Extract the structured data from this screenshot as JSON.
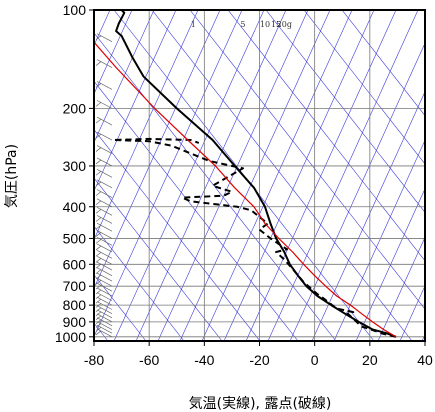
{
  "chart_data": {
    "type": "line",
    "title": "",
    "xlabel": "気温(実線), 露点(破線)",
    "ylabel": "気圧(hPa)",
    "xlim": [
      -80,
      40
    ],
    "ylim": [
      1030,
      100
    ],
    "y_scale": "log",
    "x_ticks": [
      -80,
      -60,
      -40,
      -20,
      0,
      20,
      40
    ],
    "y_ticks": [
      100,
      200,
      300,
      400,
      500,
      600,
      700,
      800,
      900,
      1000
    ],
    "mixing_ratio_labels": [
      "1",
      "5",
      "10",
      "15",
      "20g"
    ],
    "grid": true,
    "colors": {
      "temperature": "#000000",
      "dewpoint": "#000000",
      "parcel": "#dd0000",
      "skewed_lines": "#3b3bdc",
      "grid": "#777777",
      "wind_barbs": "#666666"
    },
    "series": [
      {
        "style": "solid",
        "points": [
          [
            29.5,
            1000
          ],
          [
            26,
            975
          ],
          [
            21,
            950
          ],
          [
            16,
            900
          ],
          [
            11,
            850
          ],
          [
            6,
            800
          ],
          [
            1,
            750
          ],
          [
            -3,
            700
          ],
          [
            -6,
            650
          ],
          [
            -9,
            600
          ],
          [
            -11,
            550
          ],
          [
            -14,
            500
          ],
          [
            -16,
            450
          ],
          [
            -18,
            400
          ],
          [
            -22,
            350
          ],
          [
            -29,
            300
          ],
          [
            -37,
            250
          ],
          [
            -50,
            200
          ],
          [
            -62,
            160
          ],
          [
            -66,
            140
          ],
          [
            -70,
            120
          ],
          [
            -72,
            116
          ],
          [
            -71,
            110
          ],
          [
            -69,
            102
          ],
          [
            -70,
            100
          ]
        ]
      },
      {
        "style": "dashed",
        "points": [
          [
            29.5,
            1000
          ],
          [
            24,
            975
          ],
          [
            22,
            960
          ],
          [
            17,
            930
          ],
          [
            12,
            850
          ],
          [
            14,
            840
          ],
          [
            8,
            820
          ],
          [
            3,
            760
          ],
          [
            1,
            740
          ],
          [
            -4,
            680
          ],
          [
            -8,
            620
          ],
          [
            -11,
            580
          ],
          [
            -14,
            550
          ],
          [
            -10,
            540
          ],
          [
            -13,
            520
          ],
          [
            -16,
            500
          ],
          [
            -20,
            470
          ],
          [
            -17,
            450
          ],
          [
            -20,
            430
          ],
          [
            -23,
            410
          ],
          [
            -28,
            400
          ],
          [
            -45,
            385
          ],
          [
            -48,
            375
          ],
          [
            -33,
            370
          ],
          [
            -30,
            360
          ],
          [
            -37,
            345
          ],
          [
            -26,
            305
          ],
          [
            -38,
            290
          ],
          [
            -52,
            260
          ],
          [
            -60,
            252
          ],
          [
            -73,
            250
          ],
          [
            -60,
            248
          ],
          [
            -45,
            250
          ],
          [
            -42,
            255
          ]
        ]
      },
      {
        "style": "solid",
        "points": [
          [
            29.5,
            1000
          ],
          [
            25,
            950
          ],
          [
            21,
            900
          ],
          [
            17,
            850
          ],
          [
            13,
            800
          ],
          [
            8,
            750
          ],
          [
            4,
            700
          ],
          [
            0,
            650
          ],
          [
            -4,
            600
          ],
          [
            -8,
            550
          ],
          [
            -13,
            500
          ],
          [
            -18,
            450
          ],
          [
            -22,
            400
          ],
          [
            -29,
            350
          ],
          [
            -36,
            300
          ],
          [
            -46,
            250
          ],
          [
            -58,
            200
          ],
          [
            -72,
            150
          ],
          [
            -82,
            120
          ]
        ]
      }
    ],
    "wind_barbs": {
      "pressures": [
        1000,
        975,
        950,
        925,
        900,
        875,
        850,
        825,
        800,
        775,
        750,
        725,
        700,
        675,
        650,
        625,
        600,
        575,
        550,
        525,
        500,
        475,
        450,
        425,
        400,
        375,
        350,
        325,
        300,
        275,
        250,
        225,
        200,
        175,
        150,
        125
      ]
    }
  }
}
